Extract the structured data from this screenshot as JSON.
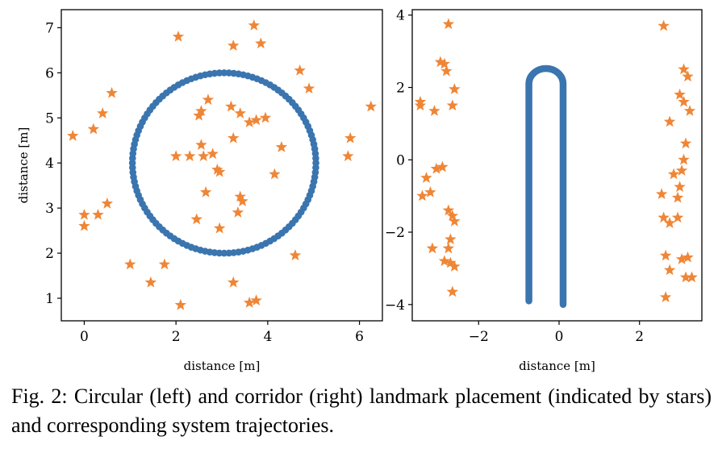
{
  "colors": {
    "trajectory": "#3b75af",
    "landmark": "#ef8636",
    "axis": "#000000"
  },
  "caption": "Fig. 2: Circular (left) and corridor (right) landmark placement (indicated by stars) and corresponding system trajectories.",
  "chart_data": [
    {
      "type": "scatter",
      "xlabel": "distance [m]",
      "ylabel": "distance [m]",
      "xlim": [
        -0.5,
        6.5
      ],
      "ylim": [
        0.5,
        7.4
      ],
      "xticks": [
        0,
        2,
        4,
        6
      ],
      "yticks": [
        1,
        2,
        3,
        4,
        5,
        6,
        7
      ],
      "grid": false,
      "trajectory": {
        "shape": "circle",
        "center": [
          3.05,
          4.0
        ],
        "radius": 2.0,
        "n_points": 120
      },
      "landmarks": [
        [
          3.7,
          7.05
        ],
        [
          2.05,
          6.8
        ],
        [
          3.25,
          6.6
        ],
        [
          3.85,
          6.65
        ],
        [
          4.7,
          6.05
        ],
        [
          4.9,
          5.65
        ],
        [
          0.6,
          5.55
        ],
        [
          6.25,
          5.25
        ],
        [
          0.4,
          5.1
        ],
        [
          2.7,
          5.4
        ],
        [
          3.2,
          5.25
        ],
        [
          2.5,
          5.05
        ],
        [
          2.55,
          5.15
        ],
        [
          3.4,
          5.1
        ],
        [
          3.6,
          4.9
        ],
        [
          3.75,
          4.95
        ],
        [
          3.95,
          5.0
        ],
        [
          0.2,
          4.75
        ],
        [
          -0.25,
          4.6
        ],
        [
          5.8,
          4.55
        ],
        [
          3.25,
          4.55
        ],
        [
          2.55,
          4.4
        ],
        [
          4.3,
          4.35
        ],
        [
          2.0,
          4.15
        ],
        [
          2.3,
          4.15
        ],
        [
          2.6,
          4.15
        ],
        [
          2.8,
          4.2
        ],
        [
          5.75,
          4.15
        ],
        [
          2.95,
          3.8
        ],
        [
          2.9,
          3.85
        ],
        [
          4.15,
          3.75
        ],
        [
          2.65,
          3.35
        ],
        [
          3.4,
          3.25
        ],
        [
          3.45,
          3.15
        ],
        [
          0.5,
          3.1
        ],
        [
          3.35,
          2.9
        ],
        [
          0.0,
          2.85
        ],
        [
          0.3,
          2.85
        ],
        [
          2.45,
          2.75
        ],
        [
          0.0,
          2.6
        ],
        [
          2.95,
          2.55
        ],
        [
          4.6,
          1.95
        ],
        [
          1.0,
          1.75
        ],
        [
          1.75,
          1.75
        ],
        [
          1.45,
          1.35
        ],
        [
          3.25,
          1.35
        ],
        [
          3.6,
          0.9
        ],
        [
          3.75,
          0.95
        ],
        [
          2.1,
          0.85
        ]
      ]
    },
    {
      "type": "scatter",
      "xlabel": "distance [m]",
      "ylabel": "",
      "xlim": [
        -3.65,
        3.55
      ],
      "ylim": [
        -4.45,
        4.15
      ],
      "xticks": [
        -2,
        0,
        2
      ],
      "yticks": [
        -4,
        -2,
        0,
        2,
        4
      ],
      "grid": false,
      "trajectory": {
        "shape": "hairpin",
        "left_x": -0.75,
        "right_x": 0.1,
        "bottom_left_y": -3.9,
        "bottom_right_y": -4.0,
        "straight_top_y": 2.1
      },
      "landmarks": [
        [
          -2.75,
          3.75
        ],
        [
          -2.95,
          2.7
        ],
        [
          -2.85,
          2.65
        ],
        [
          -2.8,
          2.45
        ],
        [
          -2.6,
          1.95
        ],
        [
          -3.45,
          1.6
        ],
        [
          -3.45,
          1.5
        ],
        [
          -2.65,
          1.5
        ],
        [
          -3.1,
          1.35
        ],
        [
          -3.05,
          -0.25
        ],
        [
          -2.9,
          -0.2
        ],
        [
          -3.3,
          -0.5
        ],
        [
          -3.2,
          -0.9
        ],
        [
          -3.4,
          -1.0
        ],
        [
          -2.75,
          -1.4
        ],
        [
          -2.65,
          -1.55
        ],
        [
          -2.6,
          -1.7
        ],
        [
          -2.7,
          -2.2
        ],
        [
          -2.75,
          -2.45
        ],
        [
          -3.15,
          -2.45
        ],
        [
          -2.85,
          -2.8
        ],
        [
          -2.7,
          -2.85
        ],
        [
          -2.6,
          -2.95
        ],
        [
          -2.65,
          -3.65
        ],
        [
          2.6,
          3.7
        ],
        [
          3.1,
          2.5
        ],
        [
          3.2,
          2.3
        ],
        [
          3.0,
          1.8
        ],
        [
          3.1,
          1.6
        ],
        [
          3.25,
          1.35
        ],
        [
          2.75,
          1.05
        ],
        [
          3.15,
          0.45
        ],
        [
          3.1,
          0.0
        ],
        [
          3.05,
          -0.3
        ],
        [
          2.85,
          -0.4
        ],
        [
          3.0,
          -0.75
        ],
        [
          2.55,
          -0.95
        ],
        [
          2.95,
          -1.05
        ],
        [
          2.6,
          -1.6
        ],
        [
          2.95,
          -1.6
        ],
        [
          2.75,
          -1.75
        ],
        [
          2.65,
          -2.65
        ],
        [
          3.05,
          -2.75
        ],
        [
          3.2,
          -2.7
        ],
        [
          2.75,
          -3.05
        ],
        [
          3.15,
          -3.25
        ],
        [
          3.3,
          -3.25
        ],
        [
          2.65,
          -3.8
        ]
      ]
    }
  ]
}
